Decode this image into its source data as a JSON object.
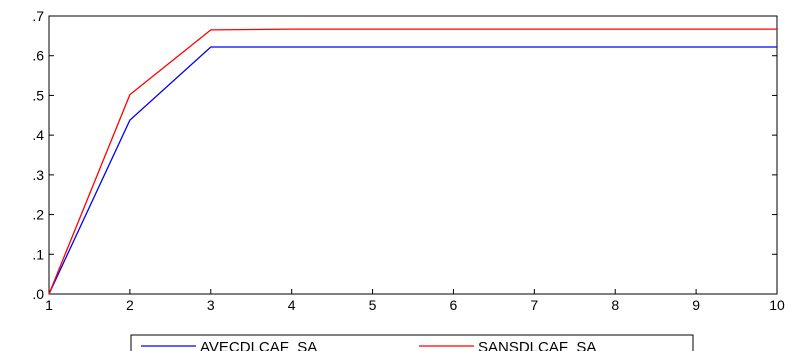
{
  "chart_data": {
    "type": "line",
    "x": [
      1,
      2,
      3,
      4,
      5,
      6,
      7,
      8,
      9,
      10
    ],
    "xlim": [
      1,
      10
    ],
    "ylim": [
      0,
      0.7
    ],
    "x_ticks": [
      1,
      2,
      3,
      4,
      5,
      6,
      7,
      8,
      9,
      10
    ],
    "y_ticks": [
      0.0,
      0.1,
      0.2,
      0.3,
      0.4,
      0.5,
      0.6,
      0.7
    ],
    "y_tick_labels": [
      ".0",
      ".1",
      ".2",
      ".3",
      ".4",
      ".5",
      ".6",
      ".7"
    ],
    "grid": false,
    "legend_position": "bottom-center",
    "series": [
      {
        "name": "AVECDLCAF_SA",
        "color": "#0000ff",
        "values": [
          0.0,
          0.438,
          0.622,
          0.622,
          0.622,
          0.622,
          0.622,
          0.622,
          0.622,
          0.622
        ]
      },
      {
        "name": "SANSDLCAF_SA",
        "color": "#ff0000",
        "values": [
          0.0,
          0.502,
          0.665,
          0.667,
          0.667,
          0.667,
          0.667,
          0.667,
          0.667,
          0.667
        ]
      }
    ]
  }
}
